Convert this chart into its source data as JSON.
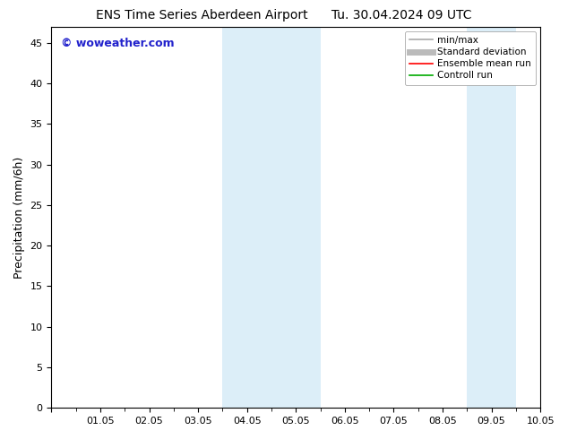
{
  "title_left": "ENS Time Series Aberdeen Airport",
  "title_right": "Tu. 30.04.2024 09 UTC",
  "ylabel": "Precipitation (mm/6h)",
  "xlabel_ticks": [
    "01.05",
    "02.05",
    "03.05",
    "04.05",
    "05.05",
    "06.05",
    "07.05",
    "08.05",
    "09.05",
    "10.05"
  ],
  "xlim": [
    0,
    10
  ],
  "ylim": [
    0,
    47
  ],
  "yticks": [
    0,
    5,
    10,
    15,
    20,
    25,
    30,
    35,
    40,
    45
  ],
  "shaded_regions": [
    {
      "xstart": 3.5,
      "xend": 4.5,
      "color": "#dceef8"
    },
    {
      "xstart": 4.5,
      "xend": 5.5,
      "color": "#dceef8"
    },
    {
      "xstart": 8.5,
      "xend": 9.5,
      "color": "#dceef8"
    }
  ],
  "bg_color": "#ffffff",
  "watermark_text": "© woweather.com",
  "watermark_color": "#2222cc",
  "legend_entries": [
    {
      "label": "min/max",
      "color": "#aaaaaa",
      "lw": 1.2
    },
    {
      "label": "Standard deviation",
      "color": "#bbbbbb",
      "lw": 5
    },
    {
      "label": "Ensemble mean run",
      "color": "#ff0000",
      "lw": 1.2
    },
    {
      "label": "Controll run",
      "color": "#00aa00",
      "lw": 1.2
    }
  ]
}
